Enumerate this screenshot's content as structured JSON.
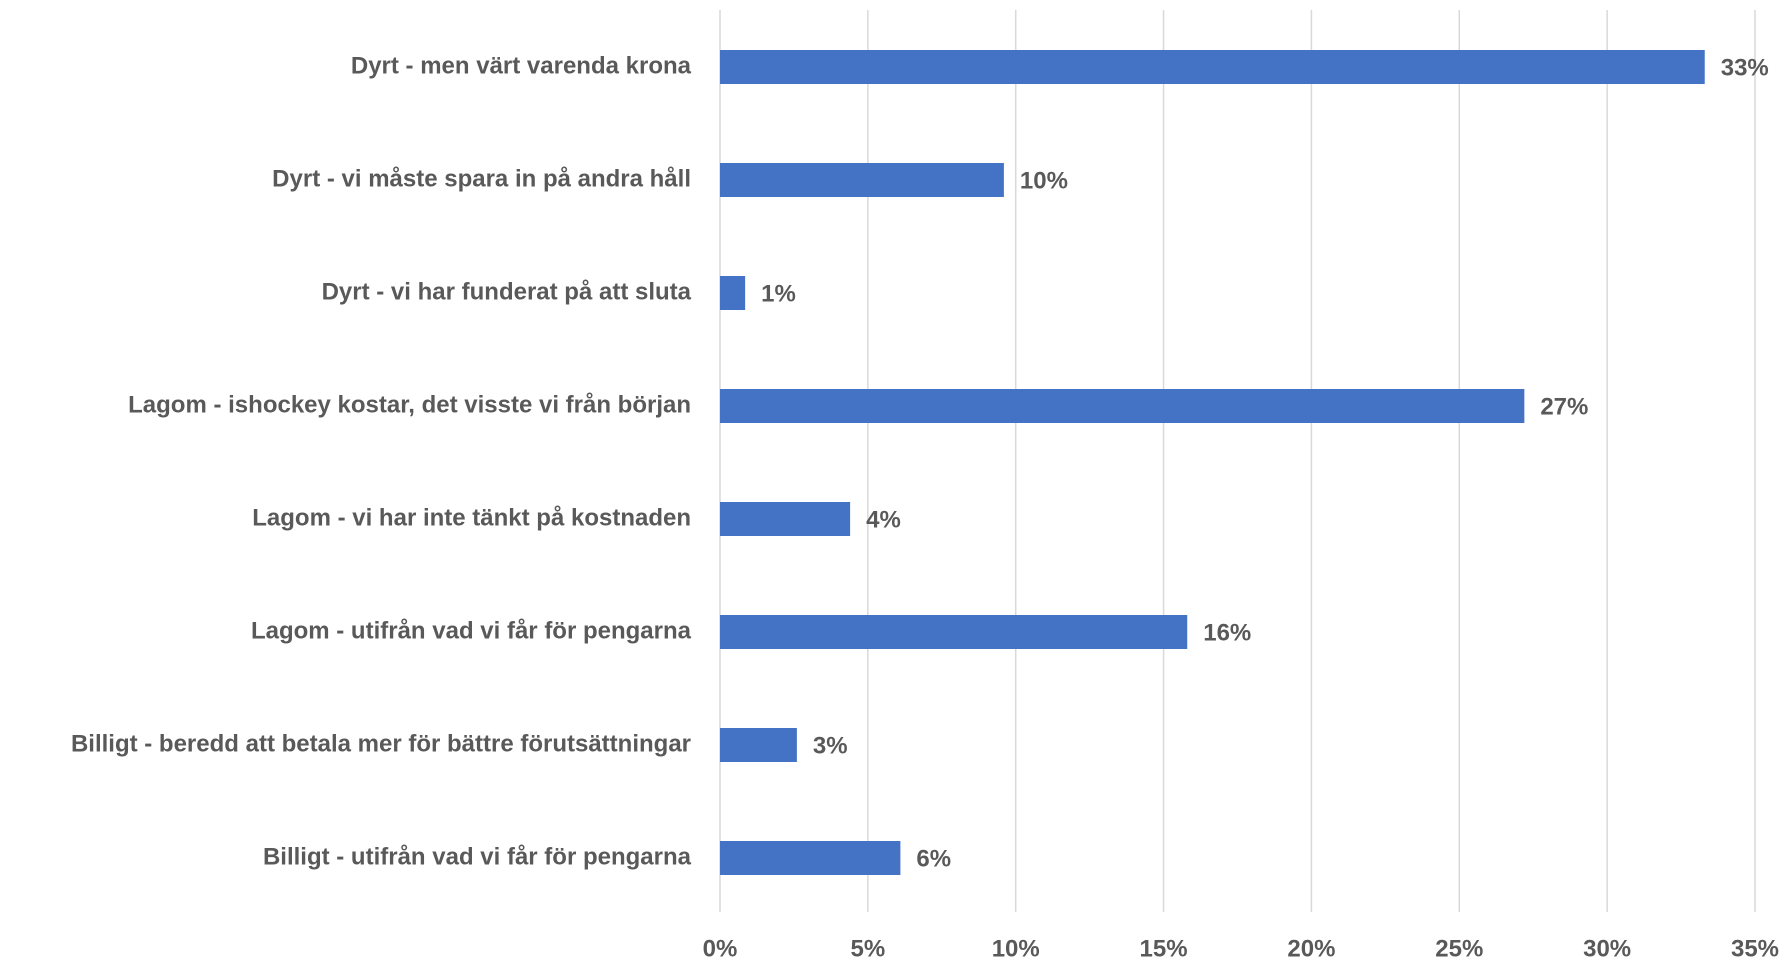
{
  "chart_data": {
    "type": "barh",
    "categories": [
      "Dyrt - men värt varenda krona",
      "Dyrt - vi måste spara in på andra håll",
      "Dyrt - vi har funderat på att sluta",
      "Lagom - ishockey kostar, det visste vi från början",
      "Lagom - vi har inte tänkt på kostnaden",
      "Lagom - utifrån vad vi får för pengarna",
      "Billigt - beredd att betala mer för bättre förutsättningar",
      "Billigt - utifrån vad vi får för pengarna"
    ],
    "values": [
      33.3,
      9.6,
      0.85,
      27.2,
      4.4,
      15.8,
      2.6,
      6.1
    ],
    "value_labels": [
      "33%",
      "10%",
      "1%",
      "27%",
      "4%",
      "16%",
      "3%",
      "6%"
    ],
    "color": "#4472c4",
    "xlim": [
      0,
      35
    ],
    "xticks": [
      {
        "value": 0,
        "label": "0%"
      },
      {
        "value": 5,
        "label": "5%"
      },
      {
        "value": 10,
        "label": "10%"
      },
      {
        "value": 15,
        "label": "15%"
      },
      {
        "value": 20,
        "label": "20%"
      },
      {
        "value": 25,
        "label": "25%"
      },
      {
        "value": 30,
        "label": "30%"
      },
      {
        "value": 35,
        "label": "35%"
      }
    ],
    "grid": true
  }
}
